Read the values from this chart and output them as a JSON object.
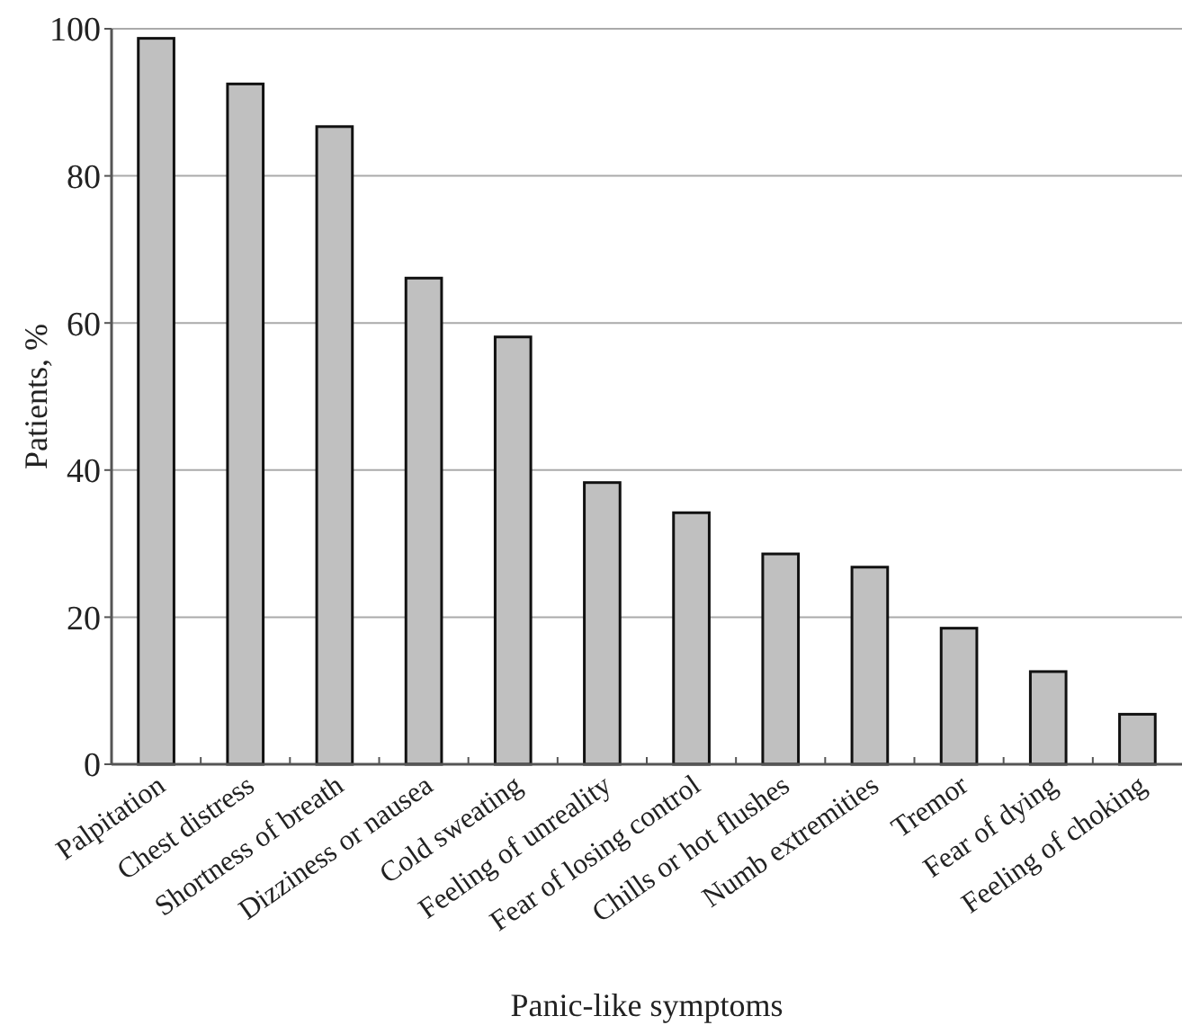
{
  "chart_data": {
    "type": "bar",
    "xlabel": "Panic-like symptoms",
    "ylabel": "Patients, %",
    "categories": [
      "Palpitation",
      "Chest distress",
      "Shortness of breath",
      "Dizziness or nausea",
      "Cold sweating",
      "Feeling of unreality",
      "Fear of losing control",
      "Chills or hot flushes",
      "Numb extremities",
      "Tremor",
      "Fear of dying",
      "Feeling of choking"
    ],
    "values": [
      98.7,
      92.5,
      86.7,
      66.1,
      58.1,
      38.3,
      34.2,
      28.6,
      26.8,
      18.5,
      12.6,
      6.8
    ],
    "color": "#c0c0c0",
    "ylim": [
      0,
      100
    ],
    "yticks": [
      0,
      20,
      40,
      60,
      80,
      100
    ],
    "grid": "y"
  }
}
